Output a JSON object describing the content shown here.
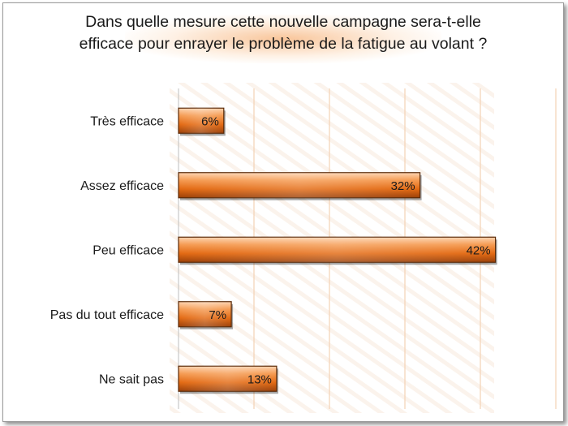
{
  "chart_data": {
    "type": "bar",
    "orientation": "horizontal",
    "title": "Dans quelle mesure cette nouvelle campagne sera-t-elle efficace pour enrayer le problème de la fatigue au volant ?",
    "title_lines": [
      "Dans quelle mesure cette nouvelle campagne sera-t-elle",
      "efficace pour enrayer le problème de la fatigue au volant ?"
    ],
    "categories": [
      "Très efficace",
      "Assez efficace",
      "Peu efficace",
      "Pas du tout efficace",
      "Ne sait pas"
    ],
    "values": [
      6,
      32,
      42,
      7,
      13
    ],
    "value_labels": [
      "6%",
      "32%",
      "42%",
      "7%",
      "13%"
    ],
    "xlim": [
      0,
      50
    ],
    "grid": true,
    "legend": "none",
    "colors": {
      "bar_light": "#fbb98a",
      "bar_main": "#e9701a",
      "bar_dark": "#8e3a08",
      "grid": "#f4d2b5"
    }
  }
}
